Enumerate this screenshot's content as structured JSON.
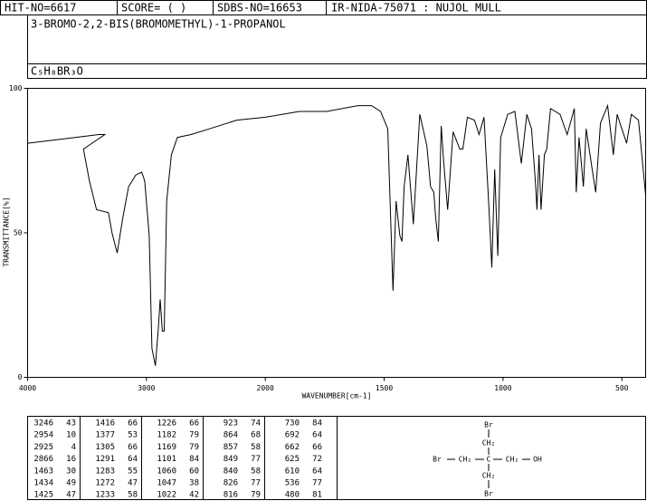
{
  "header": {
    "hit_no": "HIT-NO=6617",
    "score": "SCORE=  (    )",
    "sdbs_no": "SDBS-NO=16653",
    "method": "IR-NIDA-75071 : NUJOL MULL"
  },
  "compound": {
    "name": "3-BROMO-2,2-BIS(BROMOMETHYL)-1-PROPANOL",
    "formula": "C₅H₈BR₃O"
  },
  "chart_data": {
    "type": "line",
    "xlabel": "WAVENUMBER[cm-1]",
    "ylabel": "TRANSMITTANCE[%]",
    "x": [
      4000,
      3600,
      3400,
      3350,
      3530,
      3480,
      3420,
      3320,
      3290,
      3246,
      3200,
      3150,
      3090,
      3040,
      3015,
      2977,
      2954,
      2925,
      2900,
      2885,
      2866,
      2850,
      2830,
      2790,
      2740,
      2625,
      2470,
      2240,
      2000,
      1856,
      1742,
      1610,
      1553,
      1515,
      1485,
      1463,
      1450,
      1434,
      1425,
      1416,
      1400,
      1377,
      1350,
      1320,
      1305,
      1291,
      1283,
      1272,
      1260,
      1250,
      1233,
      1226,
      1210,
      1182,
      1169,
      1150,
      1120,
      1101,
      1080,
      1060,
      1047,
      1035,
      1022,
      1010,
      980,
      950,
      923,
      900,
      880,
      864,
      857,
      849,
      840,
      826,
      816,
      800,
      760,
      730,
      700,
      692,
      680,
      662,
      650,
      625,
      610,
      590,
      560,
      536,
      520,
      500,
      480,
      460,
      430,
      400
    ],
    "values": [
      81,
      83,
      84,
      84,
      79,
      68,
      58,
      57,
      50,
      43,
      55,
      66,
      70,
      71,
      68,
      49,
      10,
      4,
      17,
      27,
      16,
      16,
      61,
      77,
      83,
      84,
      86,
      89,
      90,
      92,
      92,
      94,
      94,
      92,
      86,
      30,
      61,
      49,
      47,
      66,
      77,
      53,
      91,
      80,
      66,
      64,
      55,
      47,
      87,
      75,
      58,
      66,
      85,
      79,
      79,
      90,
      89,
      84,
      90,
      60,
      38,
      72,
      42,
      83,
      91,
      92,
      74,
      91,
      86,
      68,
      58,
      77,
      58,
      77,
      79,
      93,
      91,
      84,
      93,
      64,
      83,
      66,
      86,
      72,
      64,
      88,
      94,
      77,
      91,
      86,
      81,
      91,
      89,
      63
    ],
    "color": "#000000",
    "xlim": [
      4000,
      400
    ],
    "xticks": [
      4000,
      3000,
      2000,
      1500,
      1000,
      500
    ],
    "ylim": [
      0,
      100
    ],
    "yticks": [
      0,
      50,
      100
    ]
  },
  "peak_table": [
    [
      3246,
      43,
      1416,
      66,
      1226,
      66,
      923,
      74,
      730,
      84
    ],
    [
      2954,
      10,
      1377,
      53,
      1182,
      79,
      864,
      68,
      692,
      64
    ],
    [
      2925,
      4,
      1305,
      66,
      1169,
      79,
      857,
      58,
      662,
      66
    ],
    [
      2866,
      16,
      1291,
      64,
      1101,
      84,
      849,
      77,
      625,
      72
    ],
    [
      1463,
      30,
      1283,
      55,
      1060,
      60,
      840,
      58,
      610,
      64
    ],
    [
      1434,
      49,
      1272,
      47,
      1047,
      38,
      826,
      77,
      536,
      77
    ],
    [
      1425,
      47,
      1233,
      58,
      1022,
      42,
      816,
      79,
      480,
      81
    ]
  ],
  "structure": {
    "atoms": [
      "Br",
      "CH₂",
      "Br",
      "CH₂",
      "C",
      "CH₂",
      "OH",
      "CH₂",
      "Br"
    ]
  }
}
